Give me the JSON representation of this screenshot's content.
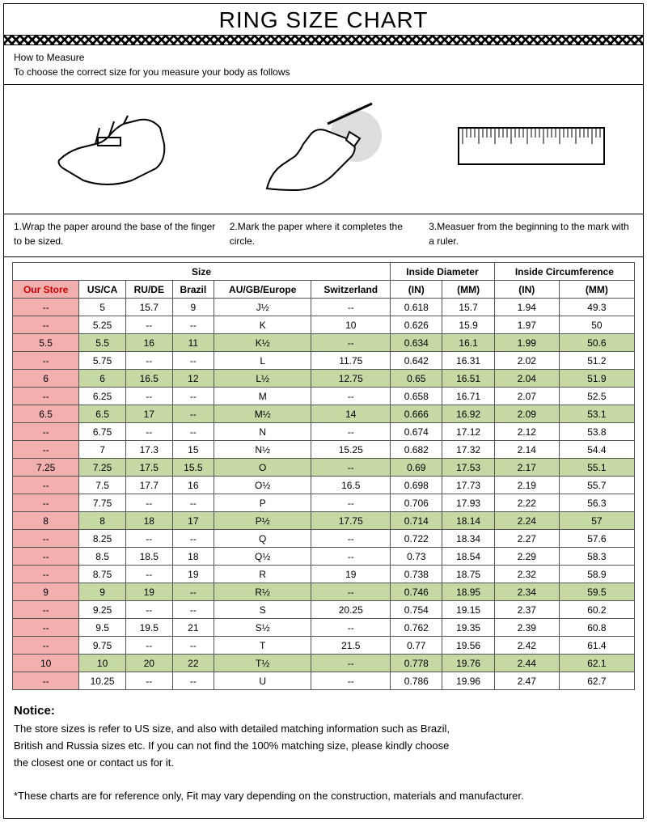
{
  "title": "RING SIZE CHART",
  "howto": {
    "heading": "How to Measure",
    "sub": "To choose the correct size for you measure your body as follows"
  },
  "steps": {
    "s1": "1.Wrap the paper around the base of the finger to be sized.",
    "s2": "2.Mark the paper where it completes the circle.",
    "s3": "3.Measuer from the beginning to the mark with a ruler."
  },
  "headers": {
    "size_group": "Size",
    "id_group": "Inside Diameter",
    "ic_group": "Inside Circumference",
    "our_store": "Our Store",
    "usca": "US/CA",
    "rude": "RU/DE",
    "brazil": "Brazil",
    "augb": "AU/GB/Europe",
    "swiss": "Switzerland",
    "in": "(IN)",
    "mm": "(MM)"
  },
  "rows": [
    {
      "hi": false,
      "our": "--",
      "us": "5",
      "ru": "15.7",
      "br": "9",
      "au": "J½",
      "sw": "--",
      "din": "0.618",
      "dmm": "15.7",
      "cin": "1.94",
      "cmm": "49.3"
    },
    {
      "hi": false,
      "our": "--",
      "us": "5.25",
      "ru": "--",
      "br": "--",
      "au": "K",
      "sw": "10",
      "din": "0.626",
      "dmm": "15.9",
      "cin": "1.97",
      "cmm": "50"
    },
    {
      "hi": true,
      "our": "5.5",
      "us": "5.5",
      "ru": "16",
      "br": "11",
      "au": "K½",
      "sw": "--",
      "din": "0.634",
      "dmm": "16.1",
      "cin": "1.99",
      "cmm": "50.6"
    },
    {
      "hi": false,
      "our": "--",
      "us": "5.75",
      "ru": "--",
      "br": "--",
      "au": "L",
      "sw": "11.75",
      "din": "0.642",
      "dmm": "16.31",
      "cin": "2.02",
      "cmm": "51.2"
    },
    {
      "hi": true,
      "our": "6",
      "us": "6",
      "ru": "16.5",
      "br": "12",
      "au": "L½",
      "sw": "12.75",
      "din": "0.65",
      "dmm": "16.51",
      "cin": "2.04",
      "cmm": "51.9"
    },
    {
      "hi": false,
      "our": "--",
      "us": "6.25",
      "ru": "--",
      "br": "--",
      "au": "M",
      "sw": "--",
      "din": "0.658",
      "dmm": "16.71",
      "cin": "2.07",
      "cmm": "52.5"
    },
    {
      "hi": true,
      "our": "6.5",
      "us": "6.5",
      "ru": "17",
      "br": "--",
      "au": "M½",
      "sw": "14",
      "din": "0.666",
      "dmm": "16.92",
      "cin": "2.09",
      "cmm": "53.1"
    },
    {
      "hi": false,
      "our": "--",
      "us": "6.75",
      "ru": "--",
      "br": "--",
      "au": "N",
      "sw": "--",
      "din": "0.674",
      "dmm": "17.12",
      "cin": "2.12",
      "cmm": "53.8"
    },
    {
      "hi": false,
      "our": "--",
      "us": "7",
      "ru": "17.3",
      "br": "15",
      "au": "N½",
      "sw": "15.25",
      "din": "0.682",
      "dmm": "17.32",
      "cin": "2.14",
      "cmm": "54.4"
    },
    {
      "hi": true,
      "our": "7.25",
      "us": "7.25",
      "ru": "17.5",
      "br": "15.5",
      "au": "O",
      "sw": "--",
      "din": "0.69",
      "dmm": "17.53",
      "cin": "2.17",
      "cmm": "55.1"
    },
    {
      "hi": false,
      "our": "--",
      "us": "7.5",
      "ru": "17.7",
      "br": "16",
      "au": "O½",
      "sw": "16.5",
      "din": "0.698",
      "dmm": "17.73",
      "cin": "2.19",
      "cmm": "55.7"
    },
    {
      "hi": false,
      "our": "--",
      "us": "7.75",
      "ru": "--",
      "br": "--",
      "au": "P",
      "sw": "--",
      "din": "0.706",
      "dmm": "17.93",
      "cin": "2.22",
      "cmm": "56.3"
    },
    {
      "hi": true,
      "our": "8",
      "us": "8",
      "ru": "18",
      "br": "17",
      "au": "P½",
      "sw": "17.75",
      "din": "0.714",
      "dmm": "18.14",
      "cin": "2.24",
      "cmm": "57"
    },
    {
      "hi": false,
      "our": "--",
      "us": "8.25",
      "ru": "--",
      "br": "--",
      "au": "Q",
      "sw": "--",
      "din": "0.722",
      "dmm": "18.34",
      "cin": "2.27",
      "cmm": "57.6"
    },
    {
      "hi": false,
      "our": "--",
      "us": "8.5",
      "ru": "18.5",
      "br": "18",
      "au": "Q½",
      "sw": "--",
      "din": "0.73",
      "dmm": "18.54",
      "cin": "2.29",
      "cmm": "58.3"
    },
    {
      "hi": false,
      "our": "--",
      "us": "8.75",
      "ru": "--",
      "br": "19",
      "au": "R",
      "sw": "19",
      "din": "0.738",
      "dmm": "18.75",
      "cin": "2.32",
      "cmm": "58.9"
    },
    {
      "hi": true,
      "our": "9",
      "us": "9",
      "ru": "19",
      "br": "--",
      "au": "R½",
      "sw": "--",
      "din": "0.746",
      "dmm": "18.95",
      "cin": "2.34",
      "cmm": "59.5"
    },
    {
      "hi": false,
      "our": "--",
      "us": "9.25",
      "ru": "--",
      "br": "--",
      "au": "S",
      "sw": "20.25",
      "din": "0.754",
      "dmm": "19.15",
      "cin": "2.37",
      "cmm": "60.2"
    },
    {
      "hi": false,
      "our": "--",
      "us": "9.5",
      "ru": "19.5",
      "br": "21",
      "au": "S½",
      "sw": "--",
      "din": "0.762",
      "dmm": "19.35",
      "cin": "2.39",
      "cmm": "60.8"
    },
    {
      "hi": false,
      "our": "--",
      "us": "9.75",
      "ru": "--",
      "br": "--",
      "au": "T",
      "sw": "21.5",
      "din": "0.77",
      "dmm": "19.56",
      "cin": "2.42",
      "cmm": "61.4"
    },
    {
      "hi": true,
      "our": "10",
      "us": "10",
      "ru": "20",
      "br": "22",
      "au": "T½",
      "sw": "--",
      "din": "0.778",
      "dmm": "19.76",
      "cin": "2.44",
      "cmm": "62.1"
    },
    {
      "hi": false,
      "our": "--",
      "us": "10.25",
      "ru": "--",
      "br": "--",
      "au": "U",
      "sw": "--",
      "din": "0.786",
      "dmm": "19.96",
      "cin": "2.47",
      "cmm": "62.7"
    }
  ],
  "notice": {
    "head": "Notice:",
    "p1": "The store sizes is refer to US size, and also with detailed matching information such as Brazil,",
    "p2": "British and Russia sizes etc. If you can not find the 100% matching size, please kindly choose",
    "p3": "the closest one or contact us for it.",
    "p4": "*These charts are for reference only, Fit may vary depending on the construction, materials and manufacturer."
  },
  "colors": {
    "highlight": "#c6d9a5",
    "ourstore": "#f3aeae",
    "ourstore_text": "#c00000"
  }
}
